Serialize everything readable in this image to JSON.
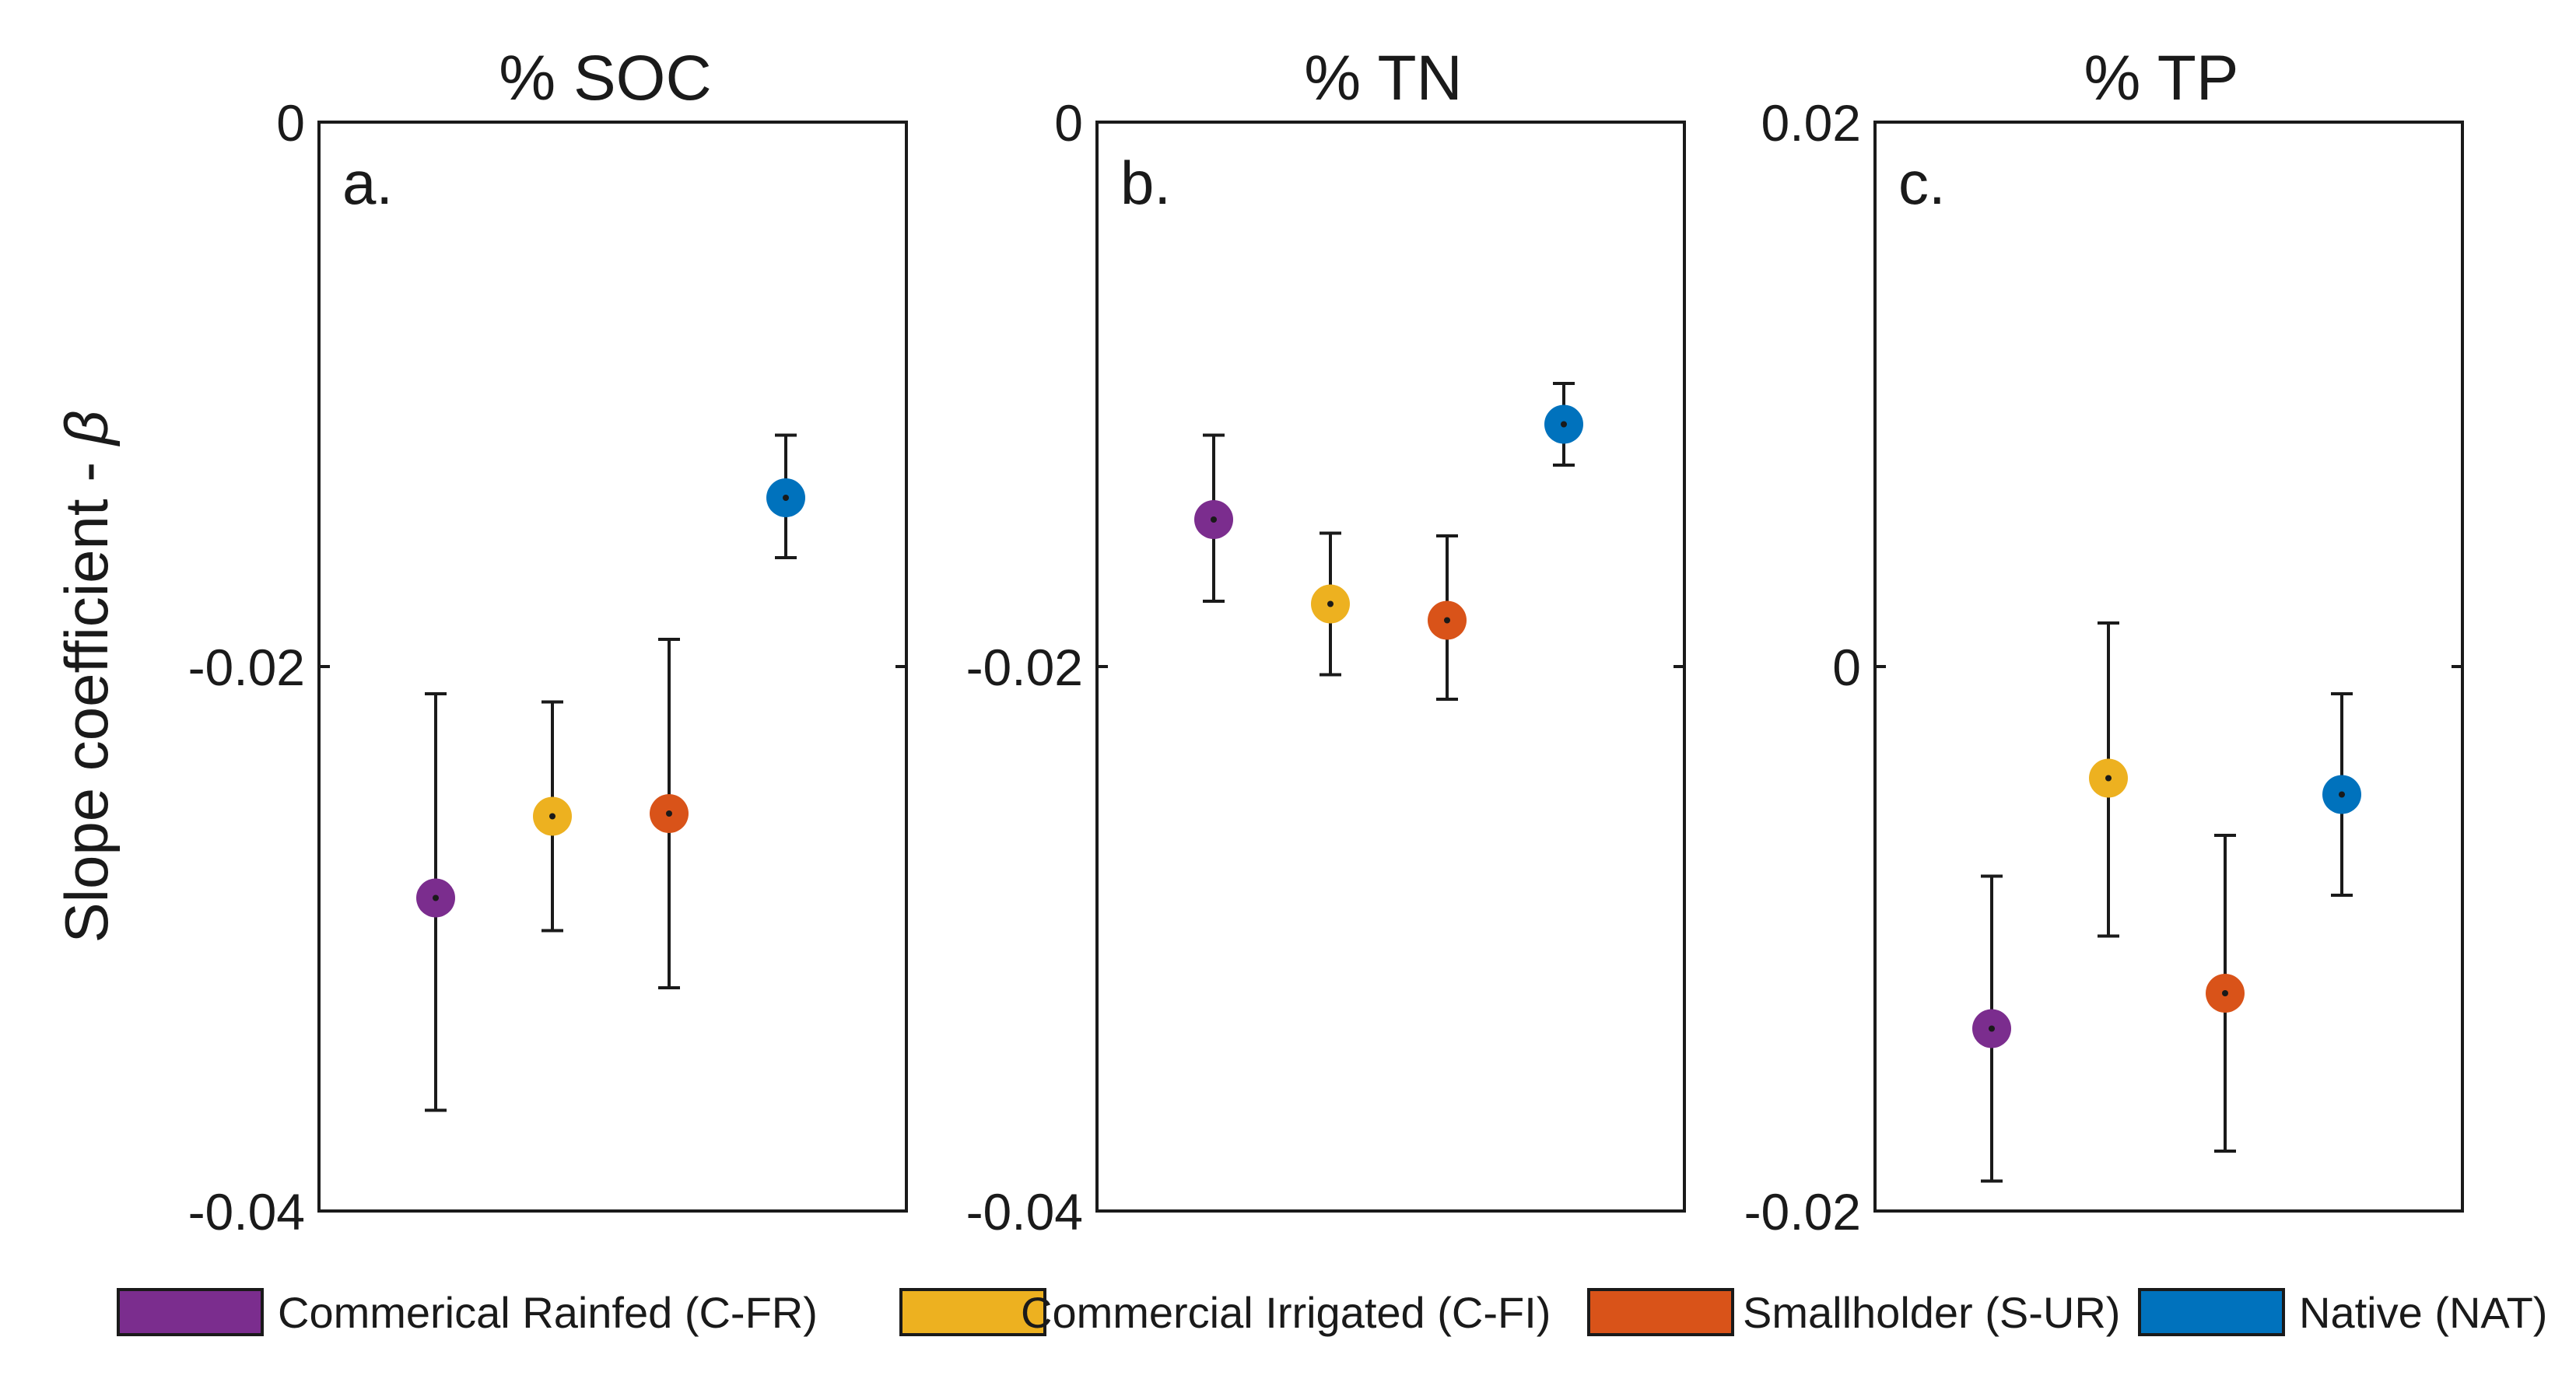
{
  "chart_data": {
    "type": "scatter",
    "ylabel": "Slope coefficient - ",
    "ylabel_symbol": "β",
    "panels": [
      {
        "title": "% SOC",
        "letter": "a.",
        "ylim": [
          -0.04,
          0
        ],
        "yticks": [
          0,
          -0.02,
          -0.04
        ],
        "ytick_labels": [
          "0",
          "-0.02",
          "-0.04"
        ],
        "points": [
          {
            "series": "C-FR",
            "value": -0.0285,
            "lower": -0.0363,
            "upper": -0.021
          },
          {
            "series": "C-FI",
            "value": -0.0255,
            "lower": -0.0297,
            "upper": -0.0213
          },
          {
            "series": "S-UR",
            "value": -0.0254,
            "lower": -0.0318,
            "upper": -0.019
          },
          {
            "series": "NAT",
            "value": -0.0138,
            "lower": -0.016,
            "upper": -0.0115
          }
        ]
      },
      {
        "title": "% TN",
        "letter": "b.",
        "ylim": [
          -0.04,
          0
        ],
        "yticks": [
          0,
          -0.02,
          -0.04
        ],
        "ytick_labels": [
          "0",
          "-0.02",
          "-0.04"
        ],
        "points": [
          {
            "series": "C-FR",
            "value": -0.0146,
            "lower": -0.0176,
            "upper": -0.0115
          },
          {
            "series": "C-FI",
            "value": -0.0177,
            "lower": -0.0203,
            "upper": -0.0151
          },
          {
            "series": "S-UR",
            "value": -0.0183,
            "lower": -0.0212,
            "upper": -0.0152
          },
          {
            "series": "NAT",
            "value": -0.0111,
            "lower": -0.0126,
            "upper": -0.0096
          }
        ]
      },
      {
        "title": "% TP",
        "letter": "c.",
        "ylim": [
          -0.02,
          0.02
        ],
        "yticks": [
          0.02,
          0,
          -0.02
        ],
        "ytick_labels": [
          "0.02",
          "0",
          "-0.02"
        ],
        "points": [
          {
            "series": "C-FR",
            "value": -0.0133,
            "lower": -0.0189,
            "upper": -0.0077
          },
          {
            "series": "C-FI",
            "value": -0.0041,
            "lower": -0.0099,
            "upper": 0.0016
          },
          {
            "series": "S-UR",
            "value": -0.012,
            "lower": -0.0178,
            "upper": -0.0062
          },
          {
            "series": "NAT",
            "value": -0.0047,
            "lower": -0.0084,
            "upper": -0.001
          }
        ]
      }
    ],
    "legend": [
      {
        "key": "C-FR",
        "label": "Commerical Rainfed (C-FR)",
        "color": "#7b2d8e"
      },
      {
        "key": "C-FI",
        "label": "Commercial Irrigated (C-FI)",
        "color": "#edb120"
      },
      {
        "key": "S-UR",
        "label": "Smallholder (S-UR)",
        "color": "#d95319"
      },
      {
        "key": "NAT",
        "label": "Native (NAT)",
        "color": "#0072bd"
      }
    ],
    "legend_position": "bottom",
    "grid": false
  }
}
